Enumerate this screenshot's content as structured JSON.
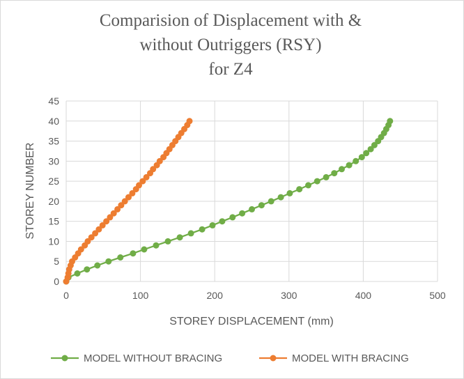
{
  "chart_data": {
    "type": "scatter",
    "title_lines": [
      "Comparision of Displacement with &",
      "without Outriggers (RSY)",
      "for Z4"
    ],
    "xlabel": "STOREY DISPLACEMENT (mm)",
    "ylabel": "STOREY NUMBER",
    "xlim": [
      0,
      500
    ],
    "ylim": [
      0,
      45
    ],
    "x_ticks": [
      "0",
      "100",
      "200",
      "300",
      "400",
      "500"
    ],
    "y_ticks": [
      "0",
      "5",
      "10",
      "15",
      "20",
      "25",
      "30",
      "35",
      "40",
      "45"
    ],
    "grid": true,
    "legend_position": "bottom",
    "series": [
      {
        "name": "MODEL WITHOUT BRACING",
        "color": "#70ad47",
        "points": [
          [
            0,
            0
          ],
          [
            3,
            1
          ],
          [
            15,
            2
          ],
          [
            28,
            3
          ],
          [
            42,
            4
          ],
          [
            57,
            5
          ],
          [
            73,
            6
          ],
          [
            90,
            7
          ],
          [
            105,
            8
          ],
          [
            121,
            9
          ],
          [
            137,
            10
          ],
          [
            153,
            11
          ],
          [
            168,
            12
          ],
          [
            183,
            13
          ],
          [
            197,
            14
          ],
          [
            210,
            15
          ],
          [
            224,
            16
          ],
          [
            237,
            17
          ],
          [
            250,
            18
          ],
          [
            263,
            19
          ],
          [
            276,
            20
          ],
          [
            289,
            21
          ],
          [
            301,
            22
          ],
          [
            314,
            23
          ],
          [
            326,
            24
          ],
          [
            338,
            25
          ],
          [
            350,
            26
          ],
          [
            361,
            27
          ],
          [
            371,
            28
          ],
          [
            381,
            29
          ],
          [
            390,
            30
          ],
          [
            398,
            31
          ],
          [
            404,
            32
          ],
          [
            410,
            33
          ],
          [
            415,
            34
          ],
          [
            420,
            35
          ],
          [
            424,
            36
          ],
          [
            428,
            37
          ],
          [
            431,
            38
          ],
          [
            434,
            39
          ],
          [
            436,
            40
          ]
        ]
      },
      {
        "name": "MODEL WITH BRACING",
        "color": "#ed7d31",
        "points": [
          [
            0,
            0
          ],
          [
            2,
            1
          ],
          [
            3,
            2
          ],
          [
            4,
            3
          ],
          [
            6,
            4
          ],
          [
            8,
            5
          ],
          [
            12,
            6
          ],
          [
            16,
            7
          ],
          [
            20,
            8
          ],
          [
            25,
            9
          ],
          [
            29,
            10
          ],
          [
            34,
            11
          ],
          [
            39,
            12
          ],
          [
            44,
            13
          ],
          [
            49,
            14
          ],
          [
            54,
            15
          ],
          [
            59,
            16
          ],
          [
            64,
            17
          ],
          [
            69,
            18
          ],
          [
            74,
            19
          ],
          [
            79,
            20
          ],
          [
            84,
            21
          ],
          [
            89,
            22
          ],
          [
            94,
            23
          ],
          [
            98,
            24
          ],
          [
            103,
            25
          ],
          [
            108,
            26
          ],
          [
            113,
            27
          ],
          [
            117,
            28
          ],
          [
            122,
            29
          ],
          [
            126,
            30
          ],
          [
            131,
            31
          ],
          [
            135,
            32
          ],
          [
            139,
            33
          ],
          [
            143,
            34
          ],
          [
            147,
            35
          ],
          [
            151,
            36
          ],
          [
            155,
            37
          ],
          [
            159,
            38
          ],
          [
            163,
            39
          ],
          [
            166,
            40
          ]
        ]
      }
    ]
  }
}
